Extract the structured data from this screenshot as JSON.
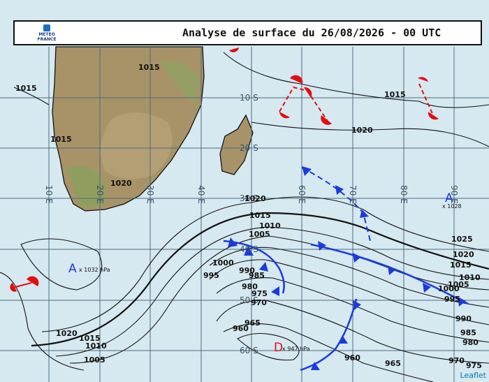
{
  "header": {
    "title": "Analyse de surface du 26/08/2026 - 00 UTC",
    "logo": [
      "METEO",
      "FRANCE"
    ]
  },
  "latitude_labels": [
    "10 S",
    "20 S",
    "30 S",
    "40 S",
    "50 S",
    "60 S"
  ],
  "longitude_labels": [
    "10 E",
    "20 E",
    "30 E",
    "40 E",
    "60 E",
    "70 E",
    "80 E",
    "90 E"
  ],
  "isobar_labels": [
    "1015",
    "1015",
    "1015",
    "1020",
    "1015",
    "1020",
    "1020",
    "1015",
    "1010",
    "1005",
    "1000",
    "995",
    "990",
    "985",
    "980",
    "975",
    "970",
    "965",
    "960",
    "1025",
    "1020",
    "1015",
    "1010",
    "1005",
    "1000",
    "995",
    "990",
    "985",
    "980",
    "975",
    "970",
    "965",
    "960",
    "1020",
    "1015",
    "1010",
    "1005"
  ],
  "centers": [
    {
      "symbol": "A",
      "label": "x 1032 hPa"
    },
    {
      "symbol": "D",
      "label": "x 947 hPa"
    },
    {
      "symbol": "A",
      "label": "x 1028"
    }
  ],
  "attribution": "Leaflet"
}
